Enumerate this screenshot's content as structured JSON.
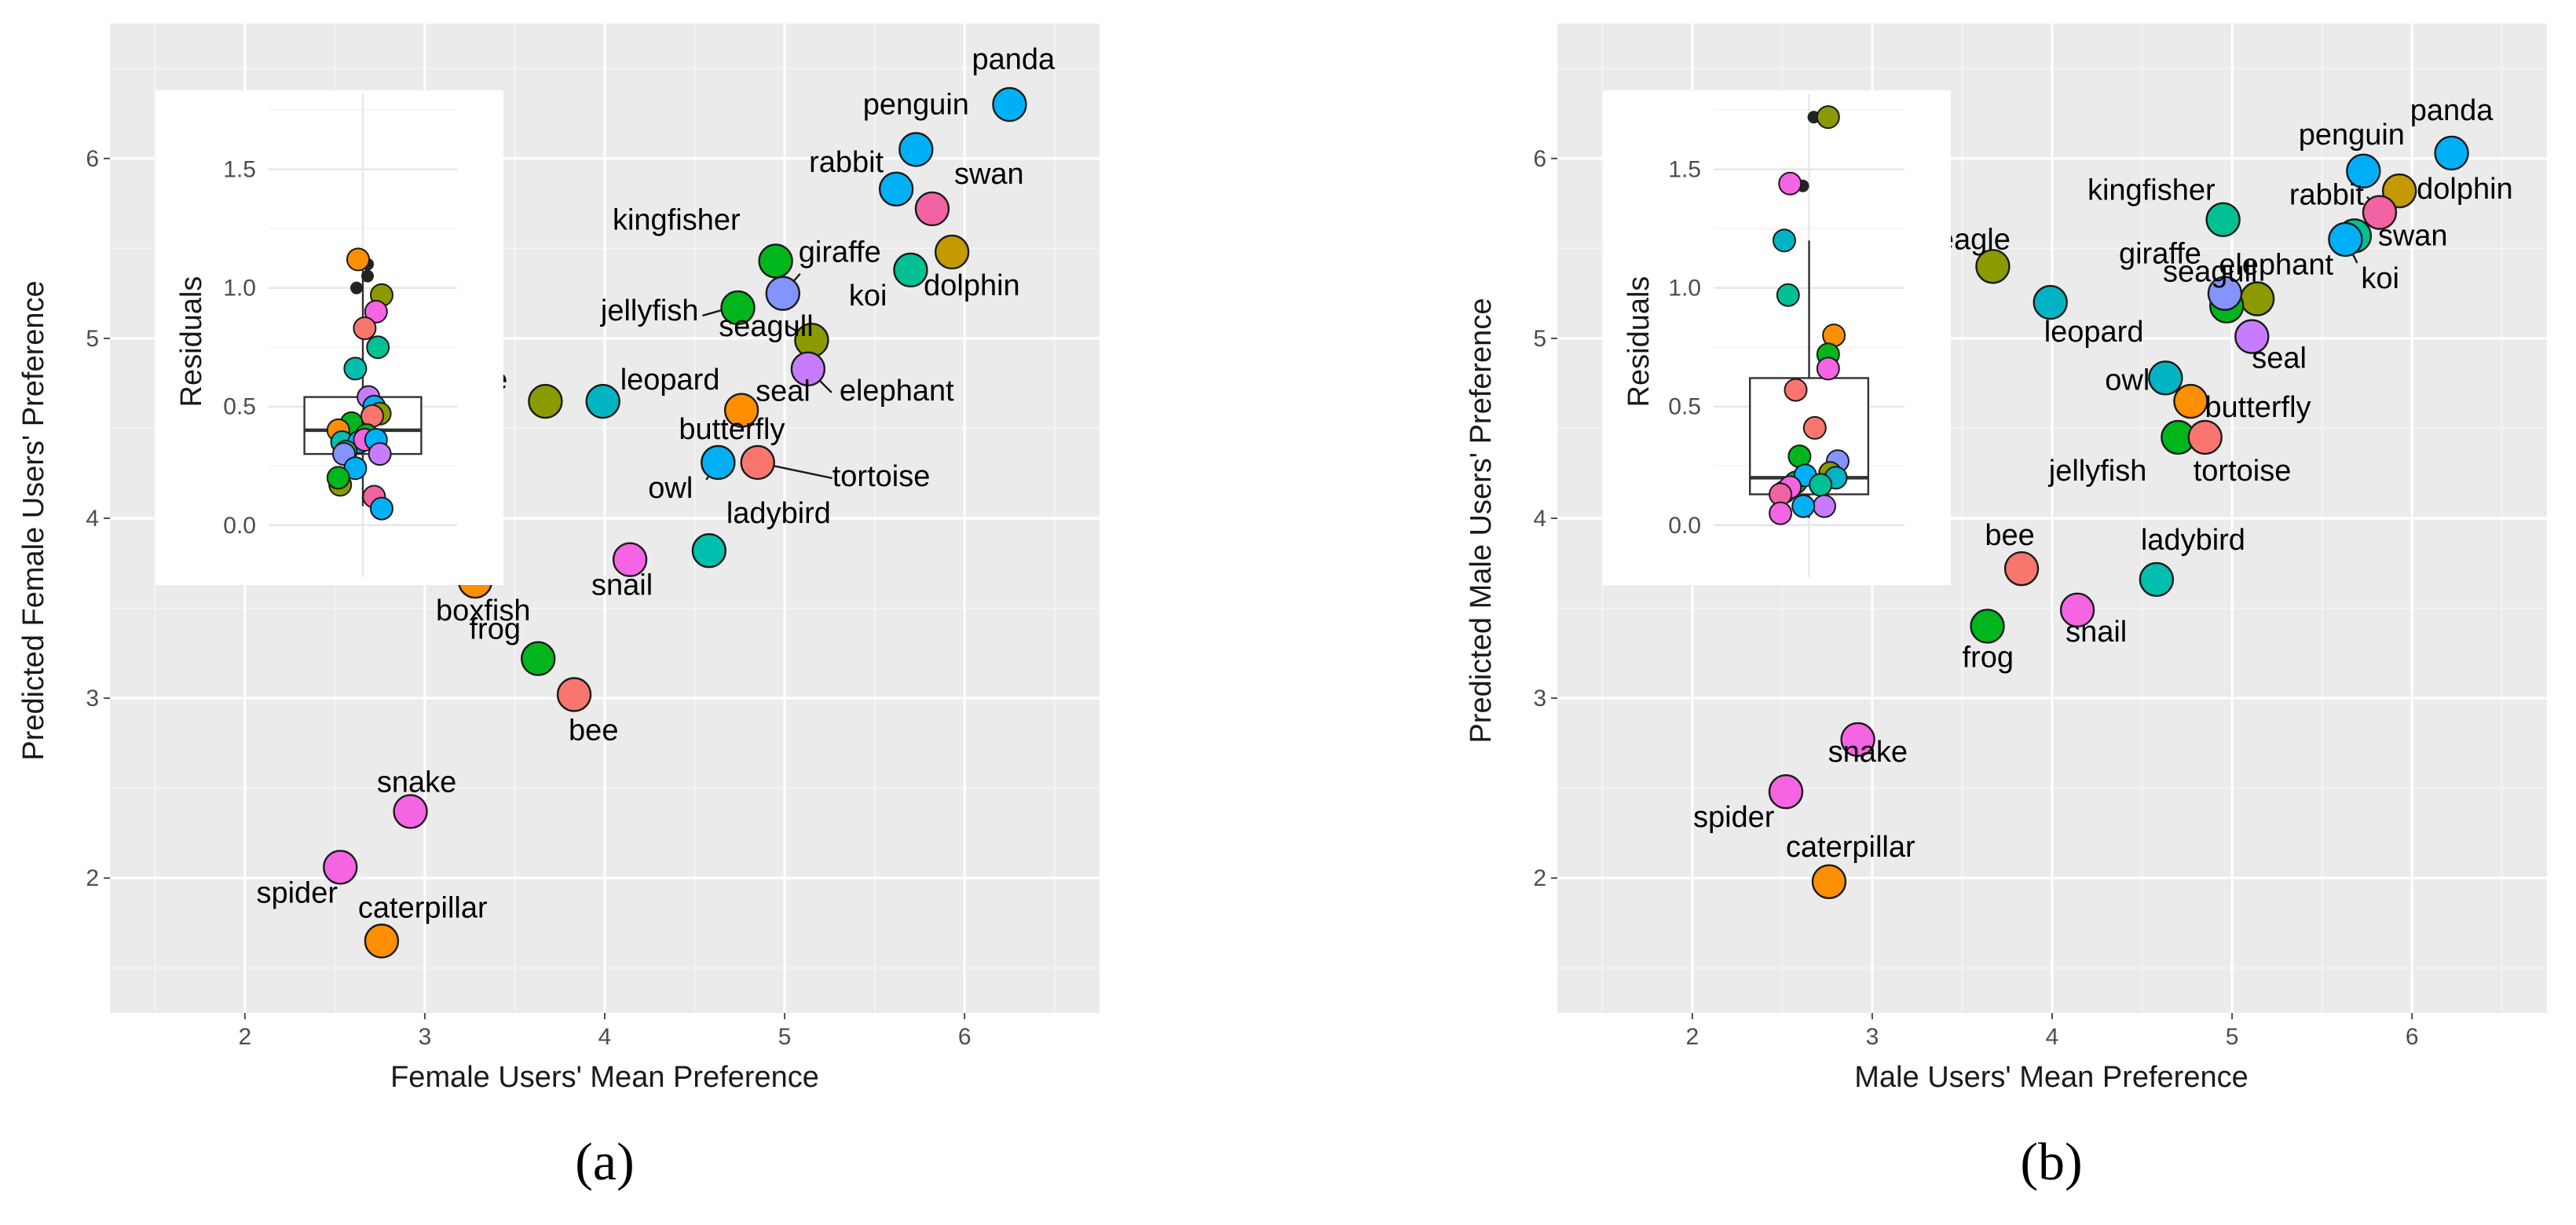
{
  "chart_data": [
    {
      "type": "scatter",
      "panel_label": "(a)",
      "xlabel": "Female Users' Mean Preference",
      "ylabel": "Predicted Female Users' Preference",
      "xlim": [
        1.25,
        6.75
      ],
      "ylim": [
        1.25,
        6.75
      ],
      "xticks": [
        "2",
        "3",
        "4",
        "5",
        "6"
      ],
      "yticks": [
        "2",
        "3",
        "4",
        "5",
        "6"
      ],
      "grid": true,
      "points": [
        {
          "label": "panda",
          "x": 6.25,
          "y": 6.3,
          "color": "#00b0f6"
        },
        {
          "label": "penguin",
          "x": 5.73,
          "y": 6.05,
          "color": "#00b0f6"
        },
        {
          "label": "rabbit",
          "x": 5.62,
          "y": 5.83,
          "color": "#00b0f6"
        },
        {
          "label": "swan",
          "x": 5.82,
          "y": 5.72,
          "color": "#f263a4"
        },
        {
          "label": "dolphin",
          "x": 5.93,
          "y": 5.48,
          "color": "#c49a00"
        },
        {
          "label": "koi",
          "x": 5.7,
          "y": 5.38,
          "color": "#00c094"
        },
        {
          "label": "kingfisher",
          "x": 4.95,
          "y": 5.43,
          "color": "#00b61c"
        },
        {
          "label": "giraffe",
          "x": 4.99,
          "y": 5.25,
          "color": "#8494ff"
        },
        {
          "label": "jellyfish",
          "x": 4.74,
          "y": 5.17,
          "color": "#00b61c"
        },
        {
          "label": "seagull",
          "x": 5.15,
          "y": 4.99,
          "color": "#8b9a00"
        },
        {
          "label": "elephant",
          "x": 5.13,
          "y": 4.83,
          "color": "#c77cff"
        },
        {
          "label": "eagle",
          "x": 3.67,
          "y": 4.65,
          "color": "#8b9a00"
        },
        {
          "label": "leopard",
          "x": 3.99,
          "y": 4.65,
          "color": "#00b4c4"
        },
        {
          "label": "seal",
          "x": 4.76,
          "y": 4.6,
          "color": "#fe8f00"
        },
        {
          "label": "owl",
          "x": 4.63,
          "y": 4.31,
          "color": "#00b0f6"
        },
        {
          "label": "butterfly",
          "x": 4.63,
          "y": 4.31,
          "color": "#00b0f6"
        },
        {
          "label": "tortoise",
          "x": 4.85,
          "y": 4.31,
          "color": "#f8766d"
        },
        {
          "label": "ladybird",
          "x": 4.58,
          "y": 3.82,
          "color": "#00bfae"
        },
        {
          "label": "snail",
          "x": 4.14,
          "y": 3.77,
          "color": "#f564e3"
        },
        {
          "label": "boxfish",
          "x": 3.28,
          "y": 3.65,
          "color": "#fe8f00"
        },
        {
          "label": "frog",
          "x": 3.63,
          "y": 3.22,
          "color": "#00b61c"
        },
        {
          "label": "bee",
          "x": 3.83,
          "y": 3.02,
          "color": "#f8766d"
        },
        {
          "label": "snake",
          "x": 2.92,
          "y": 2.37,
          "color": "#f564e3"
        },
        {
          "label": "spider",
          "x": 2.53,
          "y": 2.06,
          "color": "#f564e3"
        },
        {
          "label": "caterpillar",
          "x": 2.76,
          "y": 1.65,
          "color": "#fe8f00"
        }
      ],
      "inset": {
        "type": "boxplot",
        "ylabel": "Residuals",
        "ylim": [
          -0.12,
          1.8
        ],
        "yticks": [
          "0.0",
          "0.5",
          "1.0",
          "1.5"
        ],
        "box": {
          "q1": 0.3,
          "median": 0.4,
          "q3": 0.54,
          "whisker_low": 0.08,
          "whisker_high": 1.1
        },
        "outliers": [
          1.1,
          1.0,
          1.05
        ],
        "points": [
          {
            "jx": -0.05,
            "y": 1.12,
            "color": "#fe8f00"
          },
          {
            "jx": 0.2,
            "y": 0.97,
            "color": "#8b9a00"
          },
          {
            "jx": 0.14,
            "y": 0.9,
            "color": "#f564e3"
          },
          {
            "jx": 0.02,
            "y": 0.83,
            "color": "#f8766d"
          },
          {
            "jx": 0.16,
            "y": 0.75,
            "color": "#00c094"
          },
          {
            "jx": -0.08,
            "y": 0.66,
            "color": "#00bfae"
          },
          {
            "jx": 0.06,
            "y": 0.54,
            "color": "#c77cff"
          },
          {
            "jx": 0.12,
            "y": 0.5,
            "color": "#00b0f6"
          },
          {
            "jx": 0.18,
            "y": 0.47,
            "color": "#8b9a00"
          },
          {
            "jx": -0.12,
            "y": 0.43,
            "color": "#00b61c"
          },
          {
            "jx": 0.1,
            "y": 0.46,
            "color": "#f8766d"
          },
          {
            "jx": -0.26,
            "y": 0.4,
            "color": "#fe8f00"
          },
          {
            "jx": 0.04,
            "y": 0.38,
            "color": "#00b61c"
          },
          {
            "jx": -0.22,
            "y": 0.35,
            "color": "#00bfae"
          },
          {
            "jx": -0.04,
            "y": 0.35,
            "color": "#00b0f6"
          },
          {
            "jx": 0.02,
            "y": 0.36,
            "color": "#f564e3"
          },
          {
            "jx": 0.14,
            "y": 0.36,
            "color": "#00b0f6"
          },
          {
            "jx": -0.18,
            "y": 0.31,
            "color": "#00c094"
          },
          {
            "jx": -0.2,
            "y": 0.3,
            "color": "#8494ff"
          },
          {
            "jx": 0.18,
            "y": 0.3,
            "color": "#c77cff"
          },
          {
            "jx": -0.08,
            "y": 0.24,
            "color": "#00b0f6"
          },
          {
            "jx": -0.24,
            "y": 0.17,
            "color": "#8b9a00"
          },
          {
            "jx": -0.26,
            "y": 0.2,
            "color": "#00b61c"
          },
          {
            "jx": 0.12,
            "y": 0.12,
            "color": "#f263a4"
          },
          {
            "jx": 0.2,
            "y": 0.07,
            "color": "#00b0f6"
          }
        ]
      }
    },
    {
      "type": "scatter",
      "panel_label": "(b)",
      "xlabel": "Male Users' Mean Preference",
      "ylabel": "Predicted Male Users' Preference",
      "xlim": [
        1.25,
        6.75
      ],
      "ylim": [
        1.25,
        6.75
      ],
      "xticks": [
        "2",
        "3",
        "4",
        "5",
        "6"
      ],
      "yticks": [
        "2",
        "3",
        "4",
        "5",
        "6"
      ],
      "grid": true,
      "points": [
        {
          "label": "panda",
          "x": 6.22,
          "y": 6.03,
          "color": "#00b0f6"
        },
        {
          "label": "penguin",
          "x": 5.73,
          "y": 5.93,
          "color": "#00b0f6"
        },
        {
          "label": "dolphin",
          "x": 5.93,
          "y": 5.82,
          "color": "#c49a00"
        },
        {
          "label": "rabbit",
          "x": 5.82,
          "y": 5.7,
          "color": "#f263a4"
        },
        {
          "label": "swan",
          "x": 5.68,
          "y": 5.57,
          "color": "#00c094"
        },
        {
          "label": "koi",
          "x": 5.63,
          "y": 5.55,
          "color": "#00b0f6"
        },
        {
          "label": "kingfisher",
          "x": 4.95,
          "y": 5.66,
          "color": "#00c094"
        },
        {
          "label": "eagle",
          "x": 3.67,
          "y": 5.4,
          "color": "#8b9a00"
        },
        {
          "label": "leopard",
          "x": 3.99,
          "y": 5.2,
          "color": "#00b4c4"
        },
        {
          "label": "seagull",
          "x": 5.14,
          "y": 5.22,
          "color": "#8b9a00"
        },
        {
          "label": "elephant",
          "x": 4.97,
          "y": 5.18,
          "color": "#00b61c"
        },
        {
          "label": "giraffe",
          "x": 4.96,
          "y": 5.25,
          "color": "#8494ff"
        },
        {
          "label": "seal",
          "x": 5.11,
          "y": 5.01,
          "color": "#c77cff"
        },
        {
          "label": "owl",
          "x": 4.63,
          "y": 4.78,
          "color": "#00b4c4"
        },
        {
          "label": "butterfly",
          "x": 4.77,
          "y": 4.65,
          "color": "#fe8f00"
        },
        {
          "label": "jellyfish",
          "x": 4.7,
          "y": 4.45,
          "color": "#00b61c"
        },
        {
          "label": "tortoise",
          "x": 4.85,
          "y": 4.45,
          "color": "#f8766d"
        },
        {
          "label": "bee",
          "x": 3.83,
          "y": 3.72,
          "color": "#f8766d"
        },
        {
          "label": "ladybird",
          "x": 4.58,
          "y": 3.66,
          "color": "#00bfae"
        },
        {
          "label": "frog",
          "x": 3.64,
          "y": 3.4,
          "color": "#00b61c"
        },
        {
          "label": "snail",
          "x": 4.14,
          "y": 3.49,
          "color": "#f564e3"
        },
        {
          "label": "snake",
          "x": 2.92,
          "y": 2.77,
          "color": "#f564e3"
        },
        {
          "label": "spider",
          "x": 2.52,
          "y": 2.48,
          "color": "#f564e3"
        },
        {
          "label": "caterpillar",
          "x": 2.76,
          "y": 1.98,
          "color": "#fe8f00"
        }
      ],
      "inset": {
        "type": "boxplot",
        "ylabel": "Residuals",
        "ylim": [
          -0.12,
          1.8
        ],
        "yticks": [
          "0.0",
          "0.5",
          "1.0",
          "1.5"
        ],
        "box": {
          "q1": 0.13,
          "median": 0.2,
          "q3": 0.62,
          "whisker_low": 0.03,
          "whisker_high": 1.2
        },
        "outliers": [
          1.72,
          1.43
        ],
        "points": [
          {
            "jx": 0.2,
            "y": 1.72,
            "color": "#8b9a00"
          },
          {
            "jx": -0.2,
            "y": 1.44,
            "color": "#f564e3"
          },
          {
            "jx": -0.26,
            "y": 1.2,
            "color": "#00b4c4"
          },
          {
            "jx": -0.22,
            "y": 0.97,
            "color": "#00c094"
          },
          {
            "jx": 0.26,
            "y": 0.8,
            "color": "#fe8f00"
          },
          {
            "jx": 0.2,
            "y": 0.72,
            "color": "#00b61c"
          },
          {
            "jx": 0.2,
            "y": 0.66,
            "color": "#f564e3"
          },
          {
            "jx": -0.14,
            "y": 0.57,
            "color": "#f8766d"
          },
          {
            "jx": 0.06,
            "y": 0.41,
            "color": "#f8766d"
          },
          {
            "jx": -0.1,
            "y": 0.29,
            "color": "#00b61c"
          },
          {
            "jx": 0.3,
            "y": 0.27,
            "color": "#8494ff"
          },
          {
            "jx": 0.22,
            "y": 0.22,
            "color": "#8b9a00"
          },
          {
            "jx": -0.14,
            "y": 0.18,
            "color": "#00b61c"
          },
          {
            "jx": 0.28,
            "y": 0.2,
            "color": "#00b4c4"
          },
          {
            "jx": -0.04,
            "y": 0.21,
            "color": "#00b0f6"
          },
          {
            "jx": 0.12,
            "y": 0.17,
            "color": "#00c094"
          },
          {
            "jx": -0.26,
            "y": 0.14,
            "color": "#c77cff"
          },
          {
            "jx": -0.2,
            "y": 0.16,
            "color": "#f564e3"
          },
          {
            "jx": -0.3,
            "y": 0.13,
            "color": "#f263a4"
          },
          {
            "jx": 0.16,
            "y": 0.08,
            "color": "#c77cff"
          },
          {
            "jx": -0.06,
            "y": 0.08,
            "color": "#00b0f6"
          },
          {
            "jx": -0.3,
            "y": 0.05,
            "color": "#f564e3"
          }
        ]
      }
    }
  ]
}
